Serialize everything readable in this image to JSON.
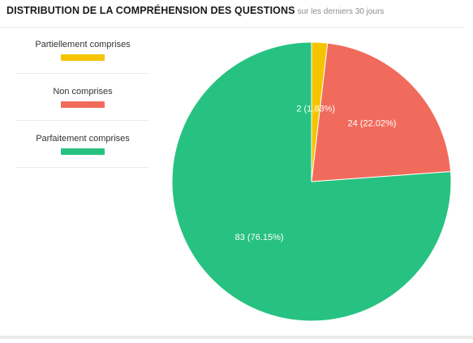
{
  "header": {
    "title": "DISTRIBUTION DE LA COMPRÉHENSION DES QUESTIONS",
    "subtitle": "sur les derniers 30 jours"
  },
  "chart_data": {
    "type": "pie",
    "title": "DISTRIBUTION DE LA COMPRÉHENSION DES QUESTIONS",
    "subtitle": "sur les derniers 30 jours",
    "legend_position": "left",
    "slices": [
      {
        "name": "Partiellement comprises",
        "value": 2,
        "label": "2 (1.83%)",
        "color": "#f5c400"
      },
      {
        "name": "Non comprises",
        "value": 24,
        "label": "24 (22.02%)",
        "color": "#f16b5c"
      },
      {
        "name": "Parfaitement comprises",
        "value": 83,
        "label": "83 (76.15%)",
        "color": "#27c281"
      }
    ]
  }
}
